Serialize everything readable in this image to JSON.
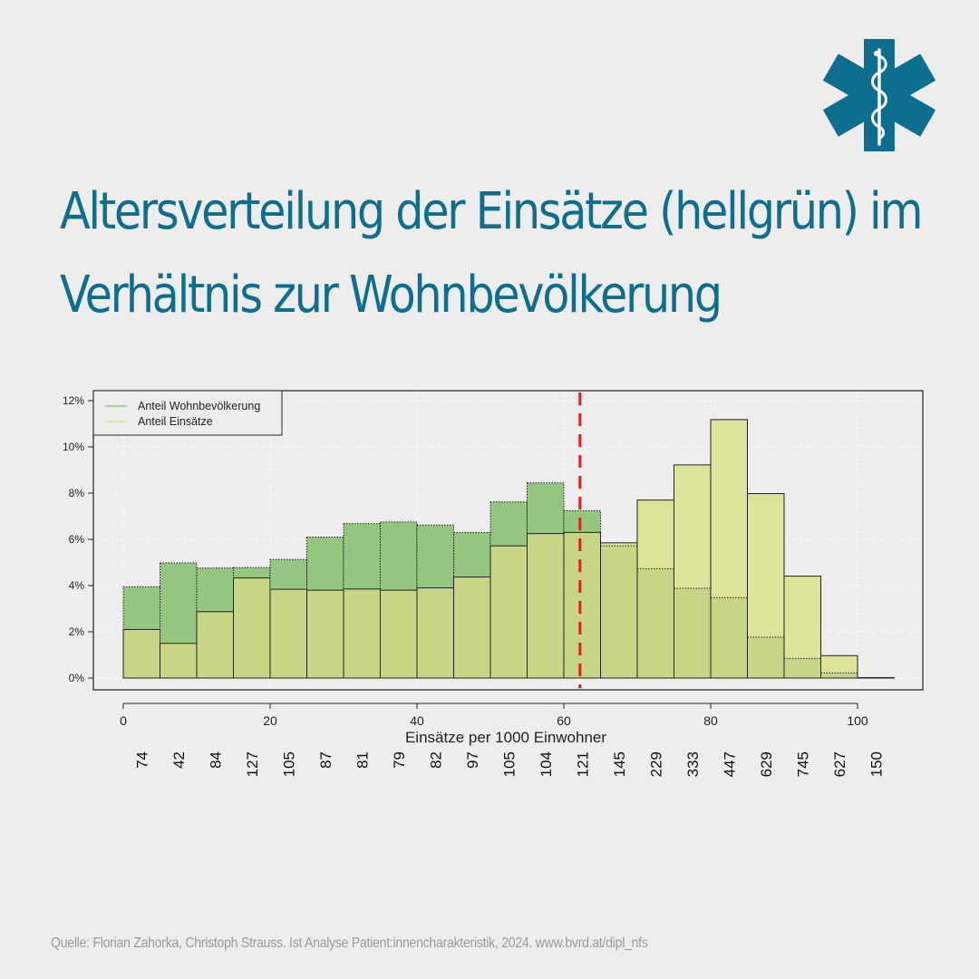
{
  "header": {
    "logo_icon": "star-of-life-icon",
    "title_line1": "Altersverteilung der Einsätze (hellgrün) im",
    "title_line2": "Verhältnis zur Wohnbevölkerung"
  },
  "colors": {
    "title": "#0d6e8f",
    "logo": "#0d6e8f",
    "population": "#94c680",
    "einsaetze": "#dde39a",
    "overlap": "#c6d686",
    "threshold_line": "#e02020"
  },
  "chart_data": {
    "type": "bar",
    "x": [
      0,
      5,
      10,
      15,
      20,
      25,
      30,
      35,
      40,
      45,
      50,
      55,
      60,
      65,
      70,
      75,
      80,
      85,
      90,
      95,
      100
    ],
    "bin_width": 5,
    "xlim": [
      0,
      105
    ],
    "xticks": [
      0,
      20,
      40,
      60,
      80,
      100
    ],
    "ylim": [
      0,
      12
    ],
    "yticks": [
      "0%",
      "2%",
      "4%",
      "6%",
      "8%",
      "10%",
      "12%"
    ],
    "xlabel": "Einsätze per 1000 Einwohner",
    "ylabel": "",
    "grid": true,
    "legend_position": "top-left",
    "series": [
      {
        "name": "Anteil Wohnbevölkerung",
        "values": [
          3.95,
          4.98,
          4.76,
          4.78,
          5.13,
          6.1,
          6.68,
          6.75,
          6.62,
          6.3,
          7.62,
          8.44,
          7.24,
          5.72,
          4.73,
          3.88,
          3.48,
          1.77,
          0.85,
          0.22,
          0.02
        ]
      },
      {
        "name": "Anteil Einsätze",
        "values": [
          2.1,
          1.5,
          2.87,
          4.33,
          3.84,
          3.8,
          3.85,
          3.8,
          3.9,
          4.37,
          5.72,
          6.25,
          6.3,
          5.85,
          7.7,
          9.22,
          11.18,
          7.98,
          4.41,
          0.97,
          0.02
        ]
      }
    ],
    "ratio_labels": [
      "74",
      "42",
      "84",
      "127",
      "105",
      "87",
      "81",
      "79",
      "82",
      "97",
      "105",
      "104",
      "121",
      "145",
      "229",
      "333",
      "447",
      "629",
      "745",
      "627",
      "150"
    ],
    "threshold_x": 62.2
  },
  "source_text": "Quelle: Florian Zahorka, Christoph Strauss. Ist Analyse Patient:innencharakteristik, 2024. www.bvrd.at/dipl_nfs"
}
